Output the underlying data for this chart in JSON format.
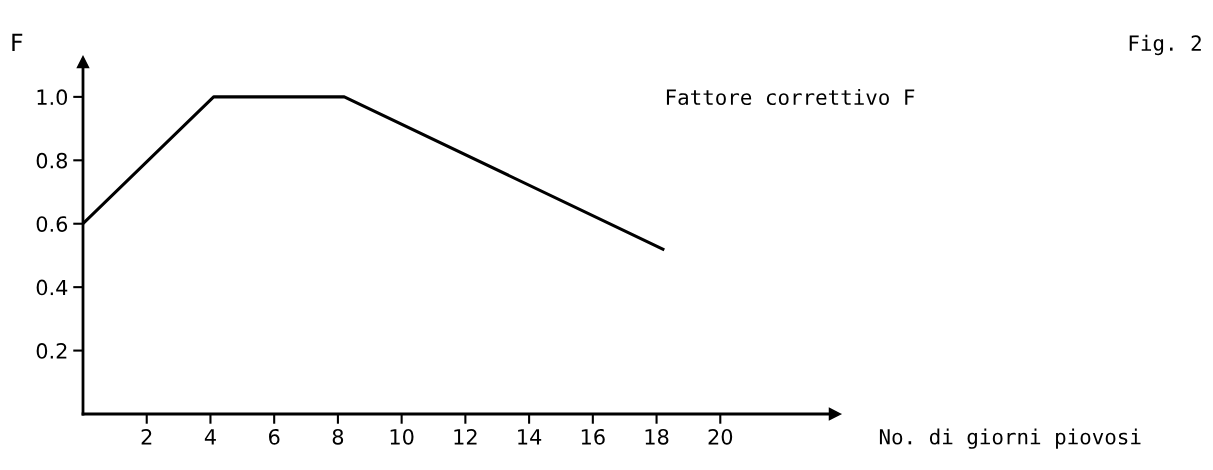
{
  "chart_data": {
    "type": "line",
    "title": "Fig. 2",
    "annotations": [
      "Fattore correttivo F"
    ],
    "xlabel": "No. di giorni piovosi",
    "ylabel": "F",
    "x": [
      0,
      4.1,
      8.2,
      18.2
    ],
    "series": [
      {
        "color": "#000000",
        "values": [
          0.6,
          1.0,
          1.0,
          0.52
        ]
      }
    ],
    "xlim": [
      0,
      23.6
    ],
    "ylim": [
      0,
      1.11
    ],
    "xticks": [
      2,
      4,
      6,
      8,
      10,
      12,
      14,
      16,
      18,
      20
    ],
    "yticks": [
      0.2,
      0.4,
      0.6,
      0.8,
      {
        "value": 1.0,
        "label": "1.0"
      }
    ],
    "grid": false,
    "legend": false,
    "marker": "none",
    "line_style": "solid"
  }
}
